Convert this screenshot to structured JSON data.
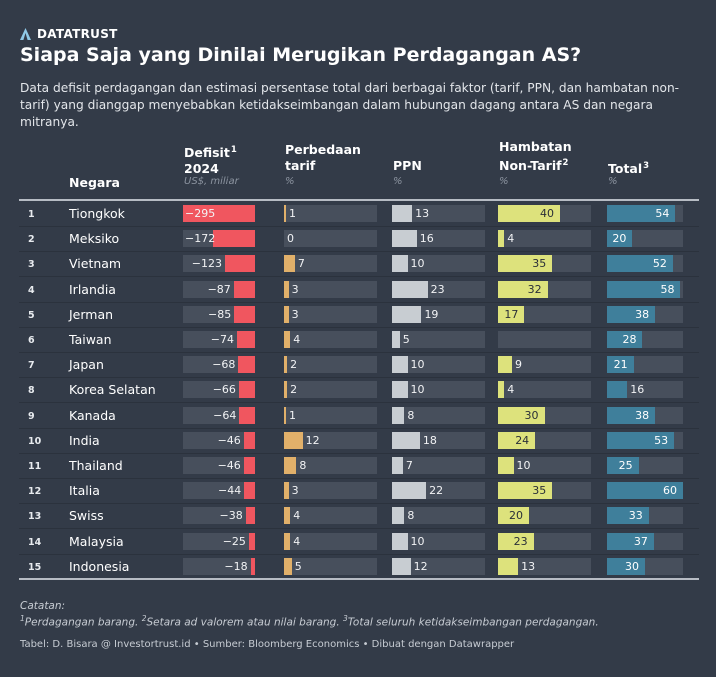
{
  "brand": {
    "name": "DATATRUST",
    "icon": "triangle-logo-icon"
  },
  "title": "Siapa Saja yang Dinilai Merugikan Perdagangan AS?",
  "subtitle": "Data defisit perdagangan dan estimasi persentase total dari berbagai faktor (tarif, PPN, dan hambatan non-tarif) yang dianggap menyebabkan ketidakseimbangan dalam hubungan dagang antara AS dan negara mitranya.",
  "colors": {
    "background": "#333b48",
    "track": "#474f5c",
    "deficit": "#f0565f",
    "tariff": "#e1b06a",
    "vat": "#c8cdd2",
    "nontariff": "#dde27c",
    "total": "#3f7f9b"
  },
  "headers": {
    "country": "Negara",
    "deficit_line1": "Defisit",
    "deficit_sup": "1",
    "deficit_line2": "2024",
    "deficit_unit": "US$, miliar",
    "tariff_line1": "Perbedaan",
    "tariff_line2": "tarif",
    "tariff_unit": "%",
    "vat": "PPN",
    "vat_unit": "%",
    "nontariff_line1": "Hambatan",
    "nontariff_line2": "Non-Tarif",
    "nontariff_sup": "2",
    "nontariff_unit": "%",
    "total": "Total",
    "total_sup": "3",
    "total_unit": "%"
  },
  "chart_data": {
    "type": "table",
    "columns": [
      "Negara",
      "Defisit 2024 (US$, miliar)",
      "Perbedaan tarif (%)",
      "PPN (%)",
      "Hambatan Non-Tarif (%)",
      "Total (%)"
    ],
    "scales": {
      "deficit_max": 295,
      "tariff_max": 60,
      "vat_max": 60,
      "nontariff_max": 60,
      "total_max": 60
    },
    "rows": [
      {
        "rank": "1",
        "country": "Tiongkok",
        "deficit": -295,
        "tariff": 1,
        "vat": 13,
        "nontariff": 40,
        "total": 54
      },
      {
        "rank": "2",
        "country": "Meksiko",
        "deficit": -172,
        "tariff": 0,
        "vat": 16,
        "nontariff": 4,
        "total": 20
      },
      {
        "rank": "3",
        "country": "Vietnam",
        "deficit": -123,
        "tariff": 7,
        "vat": 10,
        "nontariff": 35,
        "total": 52
      },
      {
        "rank": "4",
        "country": "Irlandia",
        "deficit": -87,
        "tariff": 3,
        "vat": 23,
        "nontariff": 32,
        "total": 58
      },
      {
        "rank": "5",
        "country": "Jerman",
        "deficit": -85,
        "tariff": 3,
        "vat": 19,
        "nontariff": 17,
        "total": 38
      },
      {
        "rank": "6",
        "country": "Taiwan",
        "deficit": -74,
        "tariff": 4,
        "vat": 5,
        "nontariff": null,
        "total": 28
      },
      {
        "rank": "7",
        "country": "Japan",
        "deficit": -68,
        "tariff": 2,
        "vat": 10,
        "nontariff": 9,
        "total": 21
      },
      {
        "rank": "8",
        "country": "Korea Selatan",
        "deficit": -66,
        "tariff": 2,
        "vat": 10,
        "nontariff": 4,
        "total": 16
      },
      {
        "rank": "9",
        "country": "Kanada",
        "deficit": -64,
        "tariff": 1,
        "vat": 8,
        "nontariff": 30,
        "total": 38
      },
      {
        "rank": "10",
        "country": "India",
        "deficit": -46,
        "tariff": 12,
        "vat": 18,
        "nontariff": 24,
        "total": 53
      },
      {
        "rank": "11",
        "country": "Thailand",
        "deficit": -46,
        "tariff": 8,
        "vat": 7,
        "nontariff": 10,
        "total": 25
      },
      {
        "rank": "12",
        "country": "Italia",
        "deficit": -44,
        "tariff": 3,
        "vat": 22,
        "nontariff": 35,
        "total": 60
      },
      {
        "rank": "13",
        "country": "Swiss",
        "deficit": -38,
        "tariff": 4,
        "vat": 8,
        "nontariff": 20,
        "total": 33
      },
      {
        "rank": "14",
        "country": "Malaysia",
        "deficit": -25,
        "tariff": 4,
        "vat": 10,
        "nontariff": 23,
        "total": 37
      },
      {
        "rank": "15",
        "country": "Indonesia",
        "deficit": -18,
        "tariff": 5,
        "vat": 12,
        "nontariff": 13,
        "total": 30
      }
    ]
  },
  "notes": {
    "label": "Catatan:",
    "n1_num": "1",
    "n1": "Perdagangan barang. ",
    "n2_num": "2",
    "n2": "Setara ad valorem atau nilai barang. ",
    "n3_num": "3",
    "n3": "Total seluruh ketidakseimbangan perdagangan."
  },
  "source": "Tabel: D. Bisara @ Investortrust.id • Sumber: Bloomberg Economics • Dibuat dengan Datawrapper"
}
